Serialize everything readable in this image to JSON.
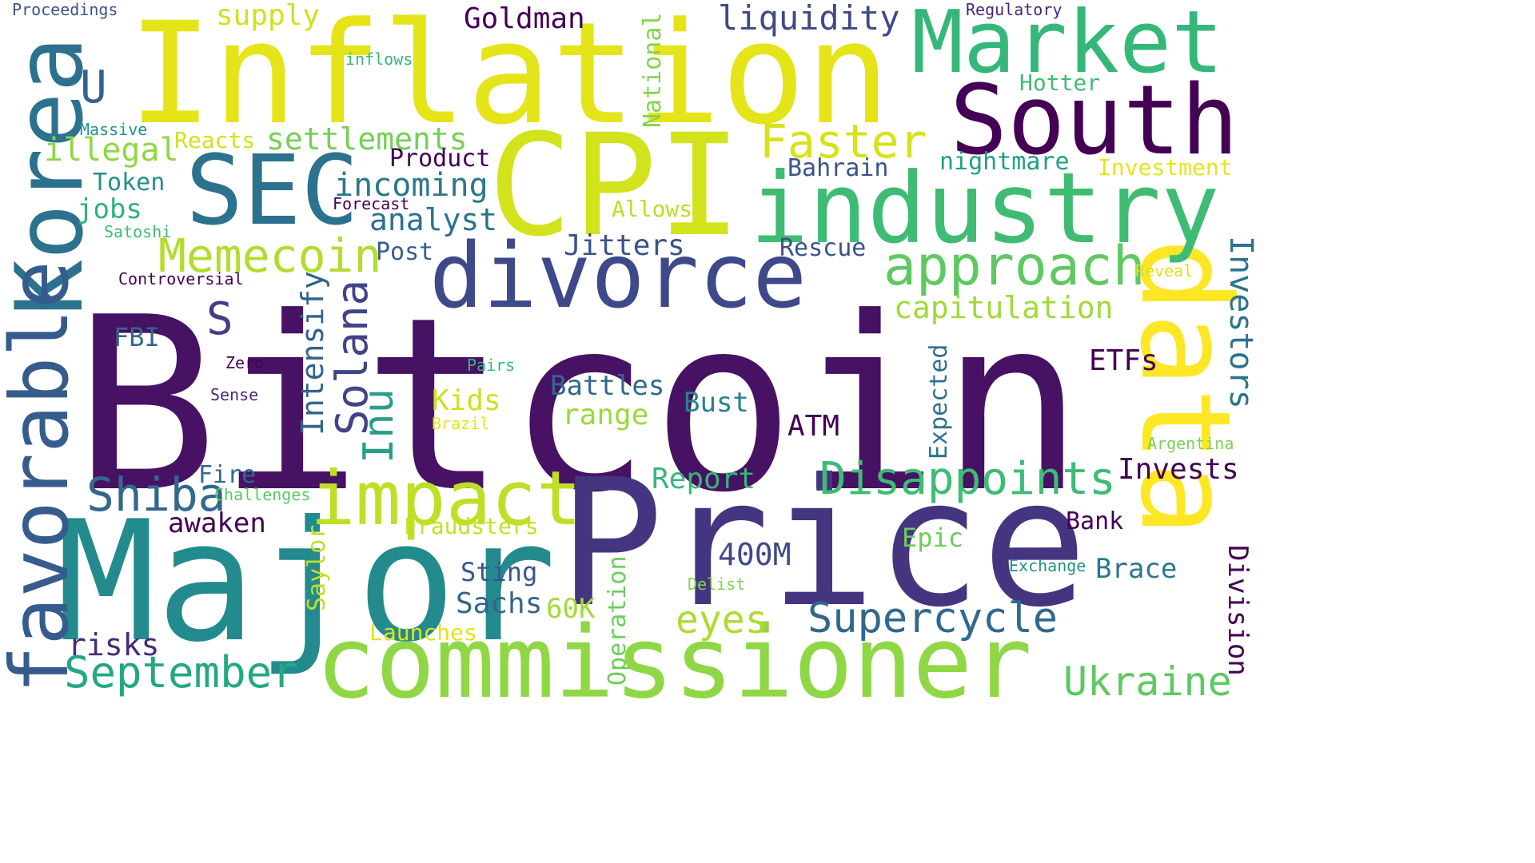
{
  "words": [
    {
      "text": "Bitcoin",
      "color": "#471164"
    },
    {
      "text": "Price",
      "color": "#453581"
    },
    {
      "text": "Major",
      "color": "#238a8d"
    },
    {
      "text": "commissioner",
      "color": "#8fd744"
    },
    {
      "text": "Inflation",
      "color": "#e4e419"
    },
    {
      "text": "CPI",
      "color": "#d2e21b"
    },
    {
      "text": "data",
      "color": "#fde725"
    },
    {
      "text": "industry",
      "color": "#3fbc73"
    },
    {
      "text": "South",
      "color": "#440154"
    },
    {
      "text": "Market",
      "color": "#35b779"
    },
    {
      "text": "divorce",
      "color": "#3e4989"
    },
    {
      "text": "Korea",
      "color": "#2c728e"
    },
    {
      "text": "favorable",
      "color": "#365c8d"
    },
    {
      "text": "SEC",
      "color": "#2c728e"
    },
    {
      "text": "impact",
      "color": "#bddf26"
    },
    {
      "text": "approach",
      "color": "#5ec962"
    },
    {
      "text": "Disappoints",
      "color": "#3dbc74"
    },
    {
      "text": "Supercycle",
      "color": "#31688e"
    },
    {
      "text": "Faster",
      "color": "#d8e219"
    },
    {
      "text": "Memecoin",
      "color": "#b2dd2d"
    },
    {
      "text": "Shiba",
      "color": "#31688e"
    },
    {
      "text": "September",
      "color": "#22a884"
    },
    {
      "text": "Ukraine",
      "color": "#5ec962"
    },
    {
      "text": "capitulation",
      "color": "#a0da39"
    },
    {
      "text": "Solana",
      "color": "#414487"
    },
    {
      "text": "Inu",
      "color": "#2a9d8a"
    },
    {
      "text": "Intensify",
      "color": "#33628d"
    },
    {
      "text": "eyes",
      "color": "#addc30"
    },
    {
      "text": "Investors",
      "color": "#2c738e"
    },
    {
      "text": "Division",
      "color": "#440154"
    },
    {
      "text": "liquidity",
      "color": "#3e4989"
    },
    {
      "text": "settlements",
      "color": "#75d054"
    },
    {
      "text": "incoming",
      "color": "#2a788e"
    },
    {
      "text": "analyst",
      "color": "#2c728e"
    },
    {
      "text": "Goldman",
      "color": "#440154"
    },
    {
      "text": "supply",
      "color": "#d0e11c"
    },
    {
      "text": "illegal",
      "color": "#8fd744"
    },
    {
      "text": "Jitters",
      "color": "#3b528b"
    },
    {
      "text": "Invests",
      "color": "#440154"
    },
    {
      "text": "range",
      "color": "#9bd93c"
    },
    {
      "text": "risks",
      "color": "#472a7a"
    },
    {
      "text": "awaken",
      "color": "#440154"
    },
    {
      "text": "Sachs",
      "color": "#33638d"
    },
    {
      "text": "Report",
      "color": "#35b779"
    },
    {
      "text": "Kids",
      "color": "#cde11d"
    },
    {
      "text": "Battles",
      "color": "#31688e"
    },
    {
      "text": "Bust",
      "color": "#26828e"
    },
    {
      "text": "Brace",
      "color": "#2a788e"
    },
    {
      "text": "400M",
      "color": "#3e4989"
    },
    {
      "text": "ATM",
      "color": "#440154"
    },
    {
      "text": "ETFs",
      "color": "#440154"
    },
    {
      "text": "60K",
      "color": "#a2da37"
    },
    {
      "text": "Sting",
      "color": "#39568c"
    },
    {
      "text": "Epic",
      "color": "#6ccd5a"
    },
    {
      "text": "Bank",
      "color": "#440154"
    },
    {
      "text": "Expected",
      "color": "#2c728e"
    },
    {
      "text": "Saylor",
      "color": "#c2df23"
    },
    {
      "text": "Operation",
      "color": "#6ccd5a"
    },
    {
      "text": "National",
      "color": "#84d44b"
    },
    {
      "text": "Post",
      "color": "#365d8d"
    },
    {
      "text": "Product",
      "color": "#440154"
    },
    {
      "text": "Rescue",
      "color": "#3b528b"
    },
    {
      "text": "Bahrain",
      "color": "#3b528b"
    },
    {
      "text": "nightmare",
      "color": "#1fa187"
    },
    {
      "text": "Investment",
      "color": "#e7e419"
    },
    {
      "text": "Hotter",
      "color": "#3fbc73"
    },
    {
      "text": "Allows",
      "color": "#bade28"
    },
    {
      "text": "jobs",
      "color": "#2db27d"
    },
    {
      "text": "Token",
      "color": "#21918c"
    },
    {
      "text": "Reacts",
      "color": "#d2e21b"
    },
    {
      "text": "Fraudsters",
      "color": "#c8e020"
    },
    {
      "text": "Launches",
      "color": "#e5e419"
    },
    {
      "text": "Fire",
      "color": "#31688e"
    },
    {
      "text": "FBI",
      "color": "#31688e"
    },
    {
      "text": "S",
      "color": "#433e85"
    },
    {
      "text": "U",
      "color": "#33638d"
    },
    {
      "text": "Proceedings",
      "color": "#3b528b"
    },
    {
      "text": "Regulatory",
      "color": "#482878"
    },
    {
      "text": "inflows",
      "color": "#35b779"
    },
    {
      "text": "Massive",
      "color": "#21918c"
    },
    {
      "text": "Forecast",
      "color": "#440154"
    },
    {
      "text": "Satoshi",
      "color": "#3dbc74"
    },
    {
      "text": "Controversial",
      "color": "#440154"
    },
    {
      "text": "Zero",
      "color": "#440154"
    },
    {
      "text": "Sense",
      "color": "#482878"
    },
    {
      "text": "Pairs",
      "color": "#35b779"
    },
    {
      "text": "Brazil",
      "color": "#e7e419"
    },
    {
      "text": "Challenges",
      "color": "#5ec962"
    },
    {
      "text": "Reveal",
      "color": "#dde318"
    },
    {
      "text": "Argentina",
      "color": "#7ad151"
    },
    {
      "text": "Exchange",
      "color": "#21918c"
    },
    {
      "text": "Delist",
      "color": "#84d44b"
    }
  ]
}
